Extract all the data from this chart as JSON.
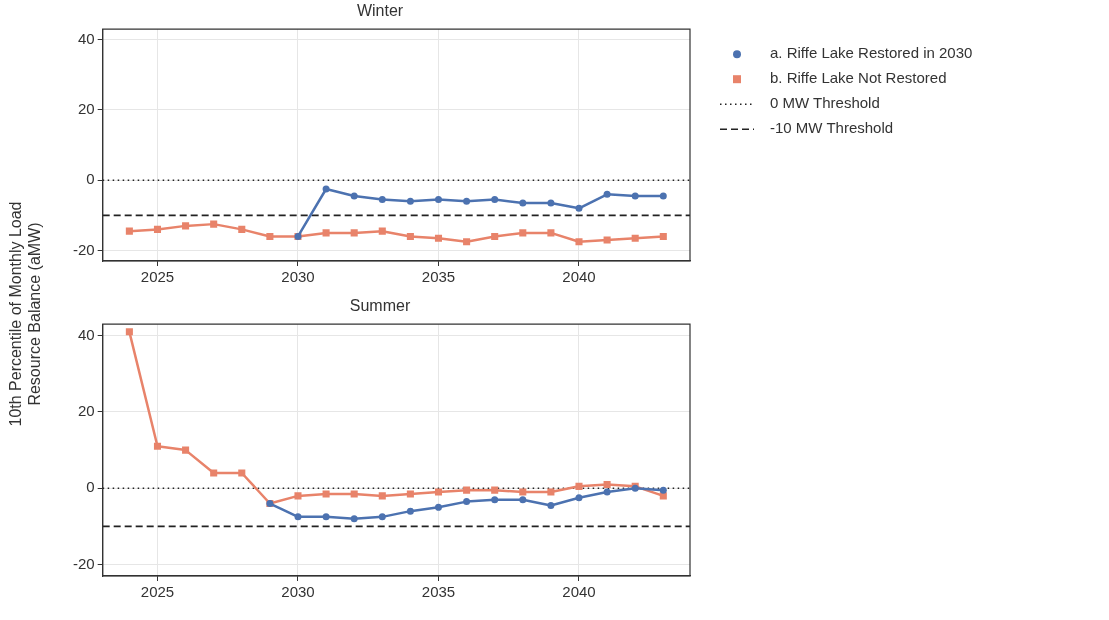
{
  "chart_data": [
    {
      "type": "line",
      "title": "Winter",
      "ylabel": "10th Percentile of Monthly Load Resource Balance (aMW)",
      "x": [
        2024,
        2025,
        2026,
        2027,
        2028,
        2029,
        2030,
        2031,
        2032,
        2033,
        2034,
        2035,
        2036,
        2037,
        2038,
        2039,
        2040,
        2041,
        2042,
        2043
      ],
      "xlim": [
        2023.05,
        2043.95
      ],
      "xticks": [
        2025,
        2030,
        2035,
        2040
      ],
      "ylim": [
        -23,
        43
      ],
      "yticks": [
        -20,
        0,
        20,
        40
      ],
      "grid": true,
      "legend": "right",
      "series": [
        {
          "name": "a. Riffe Lake Restored in 2030",
          "color": "#4c72b0",
          "marker": "circle",
          "x": [
            2030,
            2031,
            2032,
            2033,
            2034,
            2035,
            2036,
            2037,
            2038,
            2039,
            2040,
            2041,
            2042,
            2043
          ],
          "values": [
            -16,
            -2.5,
            -4.5,
            -5.5,
            -6,
            -5.5,
            -6,
            -5.5,
            -6.5,
            -6.5,
            -8,
            -4,
            -4.5,
            -4.5
          ]
        },
        {
          "name": "b. Riffe Lake Not Restored",
          "color": "#e8836a",
          "marker": "square",
          "values": [
            -14.5,
            -14,
            -13,
            -12.5,
            -14,
            -16,
            -16,
            -15,
            -15,
            -14.5,
            -16,
            -16.5,
            -17.5,
            -16,
            -15,
            -15,
            -17.5,
            -17,
            -16.5,
            -16
          ]
        }
      ],
      "ref_lines": [
        {
          "axis": "y",
          "value": 0,
          "label": "0 MW Threshold",
          "color": "#222222",
          "line_style": "dotted"
        },
        {
          "axis": "y",
          "value": -10,
          "label": "-10 MW Threshold",
          "color": "#222222",
          "line_style": "dashed"
        }
      ]
    },
    {
      "type": "line",
      "title": "Summer",
      "x": [
        2024,
        2025,
        2026,
        2027,
        2028,
        2029,
        2030,
        2031,
        2032,
        2033,
        2034,
        2035,
        2036,
        2037,
        2038,
        2039,
        2040,
        2041,
        2042,
        2043
      ],
      "xlim": [
        2023.05,
        2043.95
      ],
      "xticks": [
        2025,
        2030,
        2035,
        2040
      ],
      "ylim": [
        -23,
        43
      ],
      "yticks": [
        -20,
        0,
        20,
        40
      ],
      "grid": true,
      "series": [
        {
          "color": "#4c72b0",
          "marker": "circle",
          "x": [
            2029,
            2030,
            2031,
            2032,
            2033,
            2034,
            2035,
            2036,
            2037,
            2038,
            2039,
            2040,
            2041,
            2042,
            2043
          ],
          "values": [
            -4,
            -7.5,
            -7.5,
            -8,
            -7.5,
            -6,
            -5,
            -3.5,
            -3,
            -3,
            -4.5,
            -2.5,
            -1,
            0,
            -0.5
          ]
        },
        {
          "color": "#e8836a",
          "marker": "square",
          "values": [
            41,
            11,
            10,
            4,
            4,
            -4,
            -2,
            -1.5,
            -1.5,
            -2,
            -1.5,
            -1,
            -0.5,
            -0.5,
            -1,
            -1,
            0.5,
            1,
            0.5,
            -2
          ]
        }
      ],
      "ref_lines": [
        {
          "axis": "y",
          "value": 0,
          "color": "#222222",
          "line_style": "dotted"
        },
        {
          "axis": "y",
          "value": -10,
          "color": "#222222",
          "line_style": "dashed"
        }
      ]
    }
  ]
}
